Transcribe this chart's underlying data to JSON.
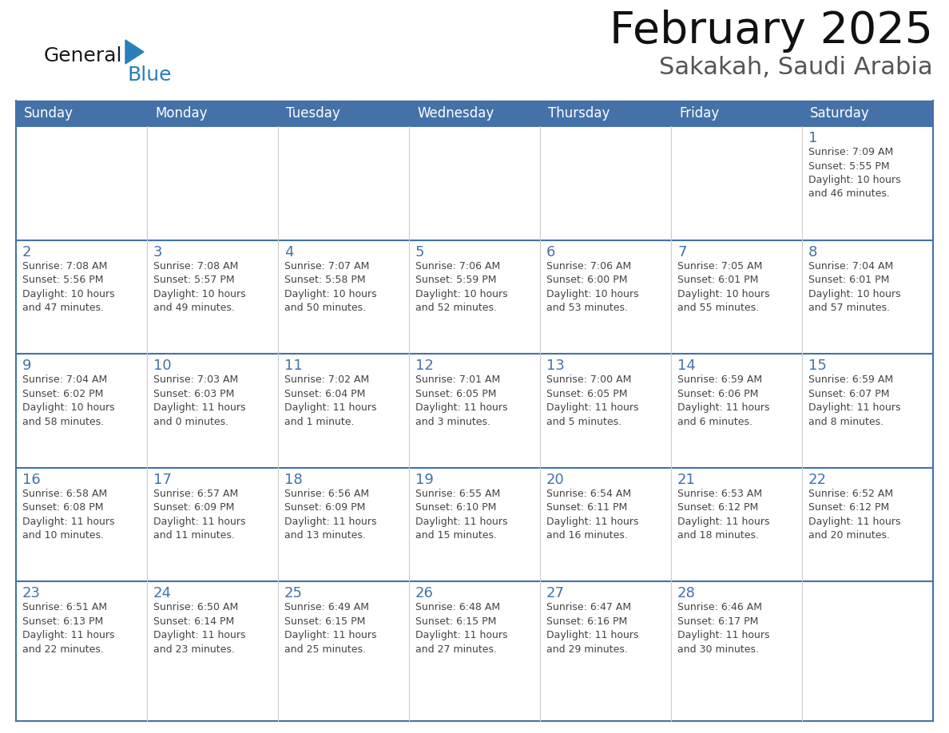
{
  "title": "February 2025",
  "subtitle": "Sakakah, Saudi Arabia",
  "header_bg": "#4472a8",
  "header_text_color": "#ffffff",
  "day_number_color": "#4472a8",
  "text_color": "#444444",
  "border_color": "#4472a8",
  "cell_line_color": "#cccccc",
  "bg_color": "#ffffff",
  "days_of_week": [
    "Sunday",
    "Monday",
    "Tuesday",
    "Wednesday",
    "Thursday",
    "Friday",
    "Saturday"
  ],
  "weeks": [
    [
      {
        "day": null,
        "info": null
      },
      {
        "day": null,
        "info": null
      },
      {
        "day": null,
        "info": null
      },
      {
        "day": null,
        "info": null
      },
      {
        "day": null,
        "info": null
      },
      {
        "day": null,
        "info": null
      },
      {
        "day": 1,
        "info": "Sunrise: 7:09 AM\nSunset: 5:55 PM\nDaylight: 10 hours\nand 46 minutes."
      }
    ],
    [
      {
        "day": 2,
        "info": "Sunrise: 7:08 AM\nSunset: 5:56 PM\nDaylight: 10 hours\nand 47 minutes."
      },
      {
        "day": 3,
        "info": "Sunrise: 7:08 AM\nSunset: 5:57 PM\nDaylight: 10 hours\nand 49 minutes."
      },
      {
        "day": 4,
        "info": "Sunrise: 7:07 AM\nSunset: 5:58 PM\nDaylight: 10 hours\nand 50 minutes."
      },
      {
        "day": 5,
        "info": "Sunrise: 7:06 AM\nSunset: 5:59 PM\nDaylight: 10 hours\nand 52 minutes."
      },
      {
        "day": 6,
        "info": "Sunrise: 7:06 AM\nSunset: 6:00 PM\nDaylight: 10 hours\nand 53 minutes."
      },
      {
        "day": 7,
        "info": "Sunrise: 7:05 AM\nSunset: 6:01 PM\nDaylight: 10 hours\nand 55 minutes."
      },
      {
        "day": 8,
        "info": "Sunrise: 7:04 AM\nSunset: 6:01 PM\nDaylight: 10 hours\nand 57 minutes."
      }
    ],
    [
      {
        "day": 9,
        "info": "Sunrise: 7:04 AM\nSunset: 6:02 PM\nDaylight: 10 hours\nand 58 minutes."
      },
      {
        "day": 10,
        "info": "Sunrise: 7:03 AM\nSunset: 6:03 PM\nDaylight: 11 hours\nand 0 minutes."
      },
      {
        "day": 11,
        "info": "Sunrise: 7:02 AM\nSunset: 6:04 PM\nDaylight: 11 hours\nand 1 minute."
      },
      {
        "day": 12,
        "info": "Sunrise: 7:01 AM\nSunset: 6:05 PM\nDaylight: 11 hours\nand 3 minutes."
      },
      {
        "day": 13,
        "info": "Sunrise: 7:00 AM\nSunset: 6:05 PM\nDaylight: 11 hours\nand 5 minutes."
      },
      {
        "day": 14,
        "info": "Sunrise: 6:59 AM\nSunset: 6:06 PM\nDaylight: 11 hours\nand 6 minutes."
      },
      {
        "day": 15,
        "info": "Sunrise: 6:59 AM\nSunset: 6:07 PM\nDaylight: 11 hours\nand 8 minutes."
      }
    ],
    [
      {
        "day": 16,
        "info": "Sunrise: 6:58 AM\nSunset: 6:08 PM\nDaylight: 11 hours\nand 10 minutes."
      },
      {
        "day": 17,
        "info": "Sunrise: 6:57 AM\nSunset: 6:09 PM\nDaylight: 11 hours\nand 11 minutes."
      },
      {
        "day": 18,
        "info": "Sunrise: 6:56 AM\nSunset: 6:09 PM\nDaylight: 11 hours\nand 13 minutes."
      },
      {
        "day": 19,
        "info": "Sunrise: 6:55 AM\nSunset: 6:10 PM\nDaylight: 11 hours\nand 15 minutes."
      },
      {
        "day": 20,
        "info": "Sunrise: 6:54 AM\nSunset: 6:11 PM\nDaylight: 11 hours\nand 16 minutes."
      },
      {
        "day": 21,
        "info": "Sunrise: 6:53 AM\nSunset: 6:12 PM\nDaylight: 11 hours\nand 18 minutes."
      },
      {
        "day": 22,
        "info": "Sunrise: 6:52 AM\nSunset: 6:12 PM\nDaylight: 11 hours\nand 20 minutes."
      }
    ],
    [
      {
        "day": 23,
        "info": "Sunrise: 6:51 AM\nSunset: 6:13 PM\nDaylight: 11 hours\nand 22 minutes."
      },
      {
        "day": 24,
        "info": "Sunrise: 6:50 AM\nSunset: 6:14 PM\nDaylight: 11 hours\nand 23 minutes."
      },
      {
        "day": 25,
        "info": "Sunrise: 6:49 AM\nSunset: 6:15 PM\nDaylight: 11 hours\nand 25 minutes."
      },
      {
        "day": 26,
        "info": "Sunrise: 6:48 AM\nSunset: 6:15 PM\nDaylight: 11 hours\nand 27 minutes."
      },
      {
        "day": 27,
        "info": "Sunrise: 6:47 AM\nSunset: 6:16 PM\nDaylight: 11 hours\nand 29 minutes."
      },
      {
        "day": 28,
        "info": "Sunrise: 6:46 AM\nSunset: 6:17 PM\nDaylight: 11 hours\nand 30 minutes."
      },
      {
        "day": null,
        "info": null
      }
    ]
  ],
  "logo_general_color": "#1a1a1a",
  "logo_blue_color": "#2980b9",
  "logo_triangle_color": "#2980b9",
  "title_fontsize": 40,
  "subtitle_fontsize": 22,
  "header_fontsize": 12,
  "day_num_fontsize": 13,
  "info_fontsize": 9
}
